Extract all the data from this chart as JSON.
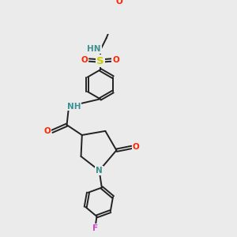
{
  "bg_color": "#ebebeb",
  "bond_color": "#222222",
  "colors": {
    "N": "#3d9090",
    "O": "#ff2200",
    "S": "#cccc00",
    "F": "#cc44cc",
    "C": "#222222"
  },
  "font_size": 7.5,
  "bond_width": 1.4,
  "dbo": 0.07,
  "xlim": [
    0,
    10
  ],
  "ylim": [
    0,
    10
  ]
}
